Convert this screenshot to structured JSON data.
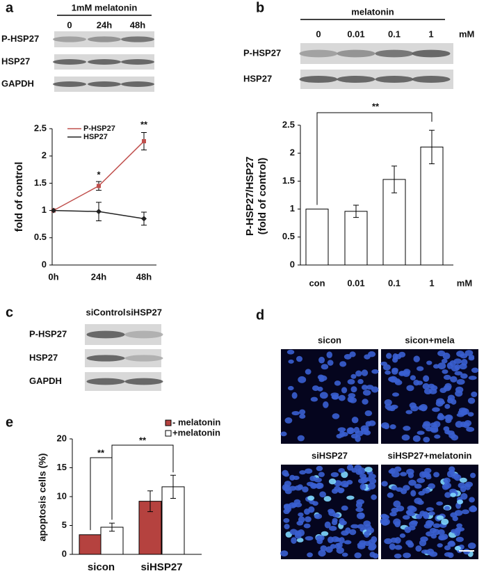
{
  "panel_labels": [
    "a",
    "b",
    "c",
    "d",
    "e"
  ],
  "blots": [
    {
      "header": "1mM melatonin",
      "lanes": [
        "0",
        "24h",
        "48h"
      ],
      "rows": [
        "P-HSP27",
        "HSP27",
        "GAPDH"
      ]
    },
    {
      "header": "melatonin",
      "lanes": [
        "0",
        "0.01",
        "0.1",
        "1"
      ],
      "unit": "mM",
      "rows": [
        "P-HSP27",
        "HSP27"
      ]
    },
    {
      "lanes": [
        "siControl",
        "siHSP27"
      ],
      "rows": [
        "P-HSP27",
        "HSP27",
        "GAPDH"
      ]
    }
  ],
  "micrographs": [
    "sicon",
    "sicon+mela",
    "siHSP27",
    "siHSP27+melatonin"
  ],
  "chart_data": [
    {
      "type": "line",
      "ylabel": "fold of control",
      "categories": [
        "0h",
        "24h",
        "48h"
      ],
      "series": [
        {
          "name": "P-HSP27",
          "color": "#c0504d",
          "values": [
            1,
            1.45,
            2.27
          ],
          "errors": [
            0,
            0.08,
            0.16
          ]
        },
        {
          "name": "HSP27",
          "color": "#222222",
          "values": [
            1,
            0.98,
            0.85
          ],
          "errors": [
            0,
            0.17,
            0.12
          ]
        }
      ],
      "annotations": [
        null,
        "*",
        "**"
      ],
      "ylim": [
        0,
        2.5
      ],
      "yticks": [
        0,
        0.5,
        1,
        1.5,
        2,
        2.5
      ]
    },
    {
      "type": "bar",
      "ylabel": [
        "P-HSP27/HSP27",
        "(fold of control)"
      ],
      "categories": [
        "con",
        "0.01",
        "0.1",
        "1"
      ],
      "unit": "mM",
      "values": [
        1,
        0.96,
        1.53,
        2.11
      ],
      "errors": [
        0,
        0.11,
        0.24,
        0.3
      ],
      "color": "#ffffff",
      "annotations": [
        "**"
      ],
      "ylim": [
        0,
        2.5
      ],
      "yticks": [
        0,
        0.5,
        1,
        1.5,
        2,
        2.5
      ]
    },
    {
      "type": "grouped-bar",
      "ylabel": "apoptosis cells (%)",
      "categories": [
        "sicon",
        "siHSP27"
      ],
      "series": [
        {
          "name": "- melatonin",
          "color": "#b5423f",
          "values": [
            3.4,
            9.2
          ],
          "errors": [
            0,
            1.8
          ]
        },
        {
          "name": "+melatonin",
          "color": "#ffffff",
          "values": [
            4.7,
            11.7
          ],
          "errors": [
            0.7,
            2.0
          ]
        }
      ],
      "annotations": [
        "**",
        "**"
      ],
      "ylim": [
        0,
        20
      ],
      "yticks": [
        0,
        5,
        10,
        15,
        20
      ]
    }
  ]
}
